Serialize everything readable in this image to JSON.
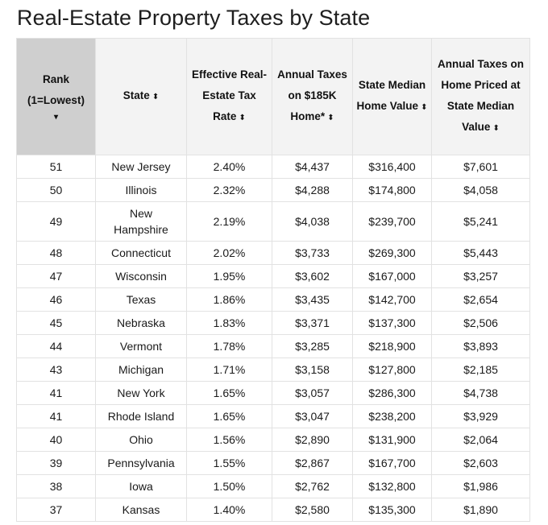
{
  "title": "Real-Estate Property Taxes by State",
  "columns": [
    {
      "label": "Rank (1=Lowest)",
      "indicator": "▾"
    },
    {
      "label": "State",
      "indicator": "⬍"
    },
    {
      "label": "Effective Real-Estate Tax Rate",
      "indicator": "⬍"
    },
    {
      "label": "Annual Taxes on $185K Home*",
      "indicator": "⬍"
    },
    {
      "label": "State Median Home Value",
      "indicator": "⬍"
    },
    {
      "label": "Annual Taxes on Home Priced at State Median Value",
      "indicator": "⬍"
    }
  ],
  "rows": [
    {
      "rank": "51",
      "state": "New Jersey",
      "rate": "2.40%",
      "tax185": "$4,437",
      "median": "$316,400",
      "taxmedian": "$7,601"
    },
    {
      "rank": "50",
      "state": "Illinois",
      "rate": "2.32%",
      "tax185": "$4,288",
      "median": "$174,800",
      "taxmedian": "$4,058"
    },
    {
      "rank": "49",
      "state": "New Hampshire",
      "rate": "2.19%",
      "tax185": "$4,038",
      "median": "$239,700",
      "taxmedian": "$5,241"
    },
    {
      "rank": "48",
      "state": "Connecticut",
      "rate": "2.02%",
      "tax185": "$3,733",
      "median": "$269,300",
      "taxmedian": "$5,443"
    },
    {
      "rank": "47",
      "state": "Wisconsin",
      "rate": "1.95%",
      "tax185": "$3,602",
      "median": "$167,000",
      "taxmedian": "$3,257"
    },
    {
      "rank": "46",
      "state": "Texas",
      "rate": "1.86%",
      "tax185": "$3,435",
      "median": "$142,700",
      "taxmedian": "$2,654"
    },
    {
      "rank": "45",
      "state": "Nebraska",
      "rate": "1.83%",
      "tax185": "$3,371",
      "median": "$137,300",
      "taxmedian": "$2,506"
    },
    {
      "rank": "44",
      "state": "Vermont",
      "rate": "1.78%",
      "tax185": "$3,285",
      "median": "$218,900",
      "taxmedian": "$3,893"
    },
    {
      "rank": "43",
      "state": "Michigan",
      "rate": "1.71%",
      "tax185": "$3,158",
      "median": "$127,800",
      "taxmedian": "$2,185"
    },
    {
      "rank": "41",
      "state": "New York",
      "rate": "1.65%",
      "tax185": "$3,057",
      "median": "$286,300",
      "taxmedian": "$4,738"
    },
    {
      "rank": "41",
      "state": "Rhode Island",
      "rate": "1.65%",
      "tax185": "$3,047",
      "median": "$238,200",
      "taxmedian": "$3,929"
    },
    {
      "rank": "40",
      "state": "Ohio",
      "rate": "1.56%",
      "tax185": "$2,890",
      "median": "$131,900",
      "taxmedian": "$2,064"
    },
    {
      "rank": "39",
      "state": "Pennsylvania",
      "rate": "1.55%",
      "tax185": "$2,867",
      "median": "$167,700",
      "taxmedian": "$2,603"
    },
    {
      "rank": "38",
      "state": "Iowa",
      "rate": "1.50%",
      "tax185": "$2,762",
      "median": "$132,800",
      "taxmedian": "$1,986"
    },
    {
      "rank": "37",
      "state": "Kansas",
      "rate": "1.40%",
      "tax185": "$2,580",
      "median": "$135,300",
      "taxmedian": "$1,890"
    }
  ]
}
